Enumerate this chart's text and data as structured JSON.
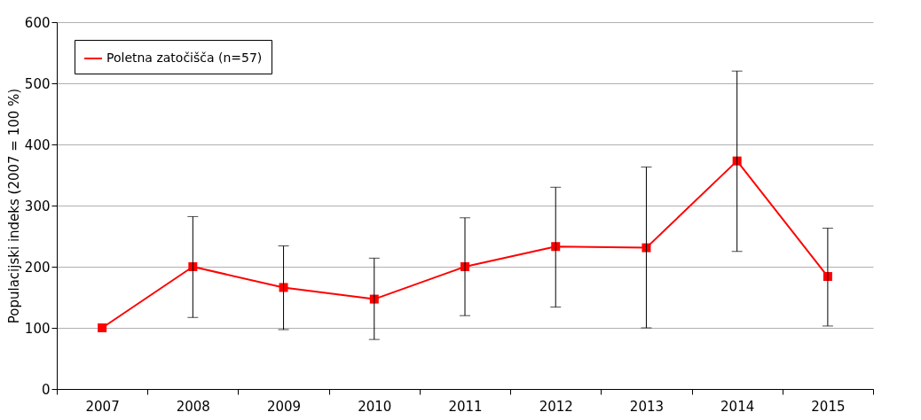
{
  "chart_data": {
    "type": "line",
    "ylabel": "Populacijski indeks (2007 = 100 %)",
    "categories": [
      "2007",
      "2008",
      "2009",
      "2010",
      "2011",
      "2012",
      "2013",
      "2014",
      "2015"
    ],
    "series": [
      {
        "name": "Poletna zatočišča (n=57)",
        "color": "#ff0000",
        "values": [
          100,
          200,
          166,
          147,
          200,
          233,
          231,
          373,
          184
        ],
        "errors": [
          null,
          [
            117,
            282
          ],
          [
            97,
            234
          ],
          [
            81,
            214
          ],
          [
            120,
            280
          ],
          [
            134,
            330
          ],
          [
            100,
            363
          ],
          [
            225,
            520
          ],
          [
            103,
            263
          ]
        ]
      }
    ],
    "ylim": [
      0,
      600
    ],
    "yticks": [
      0,
      100,
      200,
      300,
      400,
      500,
      600
    ],
    "grid": "y",
    "legend": "top left",
    "marker": "square",
    "line_style": "solid"
  }
}
